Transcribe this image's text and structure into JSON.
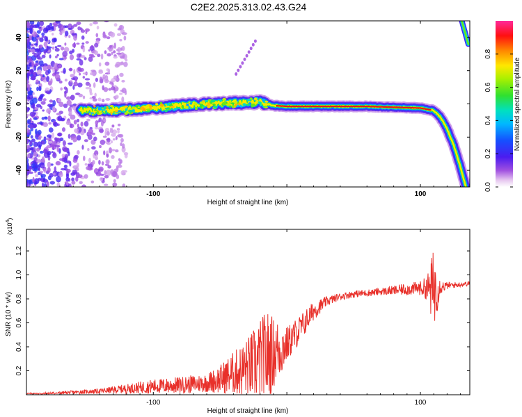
{
  "title": "C2E2.2025.313.02.43.G24",
  "chart_data": [
    {
      "type": "heatmap",
      "xlabel": "Height of straight line (km)",
      "ylabel": "Frequency (Hz)",
      "xlim": [
        -195,
        137
      ],
      "ylim": [
        -50,
        50
      ],
      "x_ticks": [
        -100,
        0,
        100
      ],
      "x_tick_labels": [
        "-100",
        "",
        "100"
      ],
      "y_ticks": [
        -40,
        -20,
        0,
        20,
        40
      ],
      "y_tick_labels": [
        "-40",
        "-20",
        "0",
        "20",
        "40"
      ],
      "ridge": {
        "x": [
          -155,
          -140,
          -120,
          -100,
          -80,
          -60,
          -40,
          -20,
          -10,
          0,
          20,
          40,
          60,
          80,
          100,
          110,
          115,
          120,
          125,
          130,
          134
        ],
        "freq": [
          -4,
          -4,
          -3.5,
          -2.5,
          -1,
          0,
          0.5,
          1,
          -1,
          -1.5,
          -1.5,
          -1.5,
          -1.5,
          -2,
          -2.5,
          -4,
          -8,
          -15,
          -25,
          -38,
          -50
        ]
      },
      "colorbar": {
        "label": "Normalized spectral amplitude",
        "range": [
          0.0,
          1.0
        ],
        "ticks": [
          0.0,
          0.2,
          0.4,
          0.6,
          0.8
        ],
        "tick_labels": [
          "0.0",
          "0.2",
          "0.4",
          "0.6",
          "0.8"
        ]
      }
    },
    {
      "type": "line",
      "xlabel": "Height of straight line (km)",
      "ylabel": "SNR (10 * v/v)",
      "multiplier": "(x10",
      "multiplier_exp": "4",
      "multiplier_close": ")",
      "xlim": [
        -195,
        137
      ],
      "ylim": [
        0.0,
        1.38
      ],
      "x_ticks": [
        -100,
        0,
        100
      ],
      "x_tick_labels": [
        "-100",
        "",
        "100"
      ],
      "y_ticks": [
        0.2,
        0.4,
        0.6,
        0.8,
        1.0,
        1.2
      ],
      "y_tick_labels": [
        "0.2",
        "0.4",
        "0.6",
        "0.8",
        "1.0",
        "1.2"
      ],
      "series": [
        {
          "name": "SNR",
          "color": "#e8302a",
          "x": [
            -195,
            -180,
            -160,
            -140,
            -120,
            -100,
            -80,
            -60,
            -50,
            -40,
            -30,
            -20,
            -15,
            -10,
            -5,
            0,
            10,
            20,
            30,
            40,
            50,
            60,
            70,
            80,
            90,
            100,
            105,
            110,
            115,
            120,
            130,
            137
          ],
          "base": [
            0.01,
            0.01,
            0.02,
            0.03,
            0.05,
            0.07,
            0.08,
            0.1,
            0.13,
            0.18,
            0.22,
            0.28,
            0.32,
            0.35,
            0.38,
            0.42,
            0.55,
            0.7,
            0.78,
            0.82,
            0.84,
            0.85,
            0.86,
            0.87,
            0.88,
            0.89,
            0.89,
            0.88,
            0.9,
            0.91,
            0.92,
            0.93
          ],
          "noise": [
            0.005,
            0.01,
            0.015,
            0.02,
            0.04,
            0.06,
            0.07,
            0.08,
            0.12,
            0.18,
            0.25,
            0.35,
            0.4,
            0.3,
            0.25,
            0.15,
            0.12,
            0.08,
            0.04,
            0.03,
            0.03,
            0.03,
            0.03,
            0.04,
            0.05,
            0.06,
            0.1,
            0.35,
            0.06,
            0.03,
            0.02,
            0.02
          ]
        }
      ]
    }
  ]
}
